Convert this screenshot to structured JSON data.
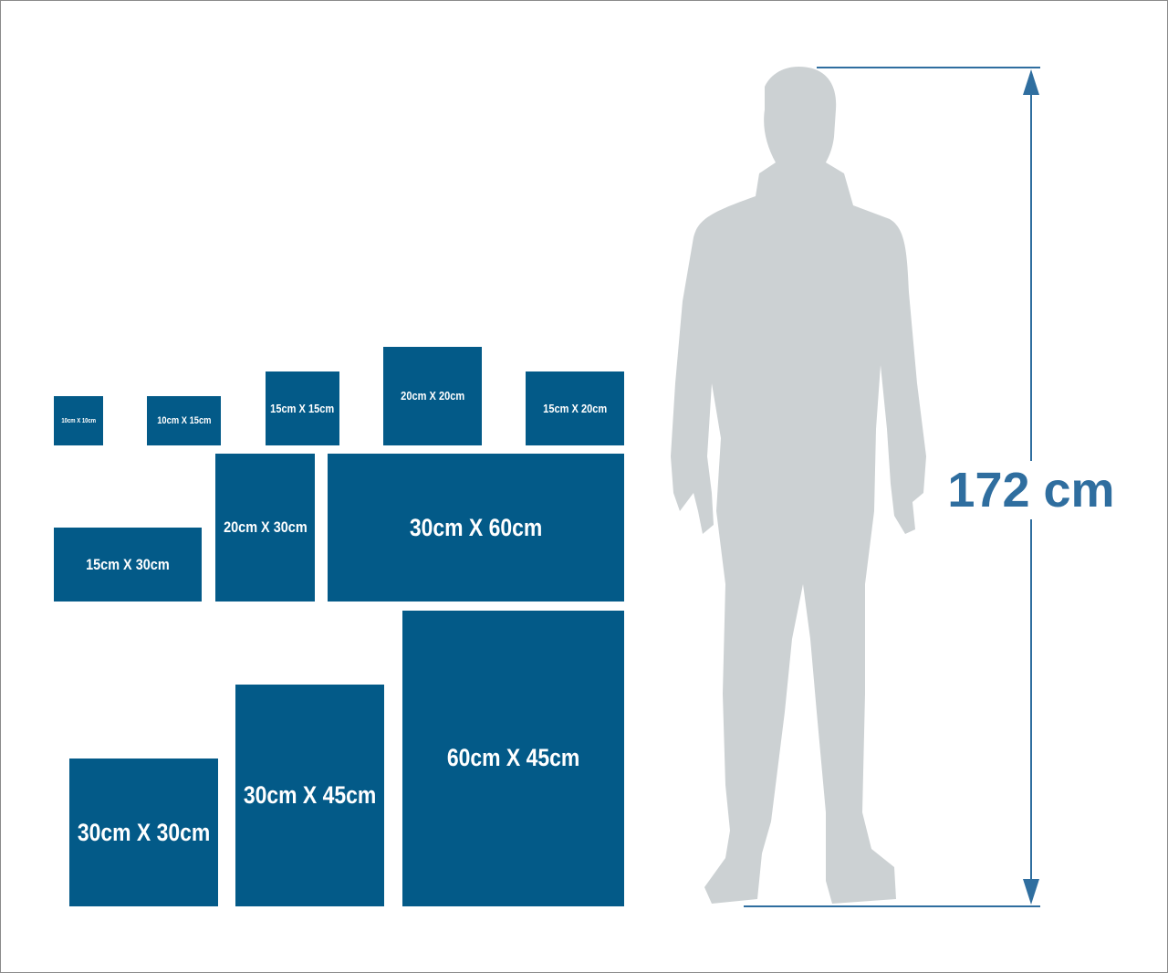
{
  "colors": {
    "box": "#035a88",
    "person": "#ccd1d3",
    "measure": "#2f6e9f"
  },
  "sizes": [
    "10cm X 10cm",
    "10cm X 15cm",
    "15cm X 15cm",
    "20cm X 20cm",
    "15cm X 20cm",
    "15cm X 30cm",
    "20cm X 30cm",
    "30cm X 60cm",
    "30cm X 30cm",
    "30cm X 45cm",
    "60cm X 45cm"
  ],
  "person": {
    "height_label": "172 cm"
  }
}
